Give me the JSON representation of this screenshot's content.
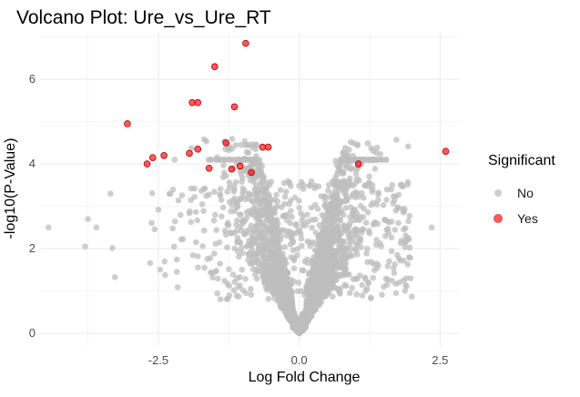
{
  "chart_data": {
    "type": "scatter",
    "title": "Volcano Plot: Ure_vs_Ure_RT",
    "xlabel": "Log Fold Change",
    "ylabel": "-log10(P-Value)",
    "xlim": [
      -4.6,
      2.85
    ],
    "ylim": [
      -0.3,
      7.1
    ],
    "x_ticks": [
      -2.5,
      0.0,
      2.5
    ],
    "x_tick_labels": [
      "-2.5",
      "0.0",
      "2.5"
    ],
    "y_ticks": [
      0,
      2,
      4,
      6
    ],
    "y_tick_labels": [
      "0",
      "2",
      "4",
      "6"
    ],
    "grid": true,
    "legend": {
      "title": "Significant",
      "position": "right",
      "entries": [
        {
          "label": "No",
          "color": "#bebebe"
        },
        {
          "label": "Yes",
          "color": "#ff0000"
        }
      ]
    },
    "series": [
      {
        "name": "Yes",
        "color": "#ff0000",
        "points": [
          [
            -0.95,
            6.85
          ],
          [
            -1.5,
            6.3
          ],
          [
            -1.9,
            5.45
          ],
          [
            -1.8,
            5.45
          ],
          [
            -1.15,
            5.35
          ],
          [
            -3.05,
            4.95
          ],
          [
            -0.65,
            4.4
          ],
          [
            -0.55,
            4.4
          ],
          [
            -1.3,
            4.5
          ],
          [
            -1.8,
            4.35
          ],
          [
            -1.95,
            4.25
          ],
          [
            -2.4,
            4.2
          ],
          [
            -2.6,
            4.15
          ],
          [
            -2.7,
            4.0
          ],
          [
            -1.05,
            3.95
          ],
          [
            -0.85,
            3.8
          ],
          [
            -1.6,
            3.9
          ],
          [
            1.05,
            4.0
          ],
          [
            2.6,
            4.3
          ],
          [
            -1.2,
            3.88
          ]
        ]
      },
      {
        "name": "No",
        "color": "#bebebe",
        "generated": true,
        "count": 2600
      }
    ]
  }
}
